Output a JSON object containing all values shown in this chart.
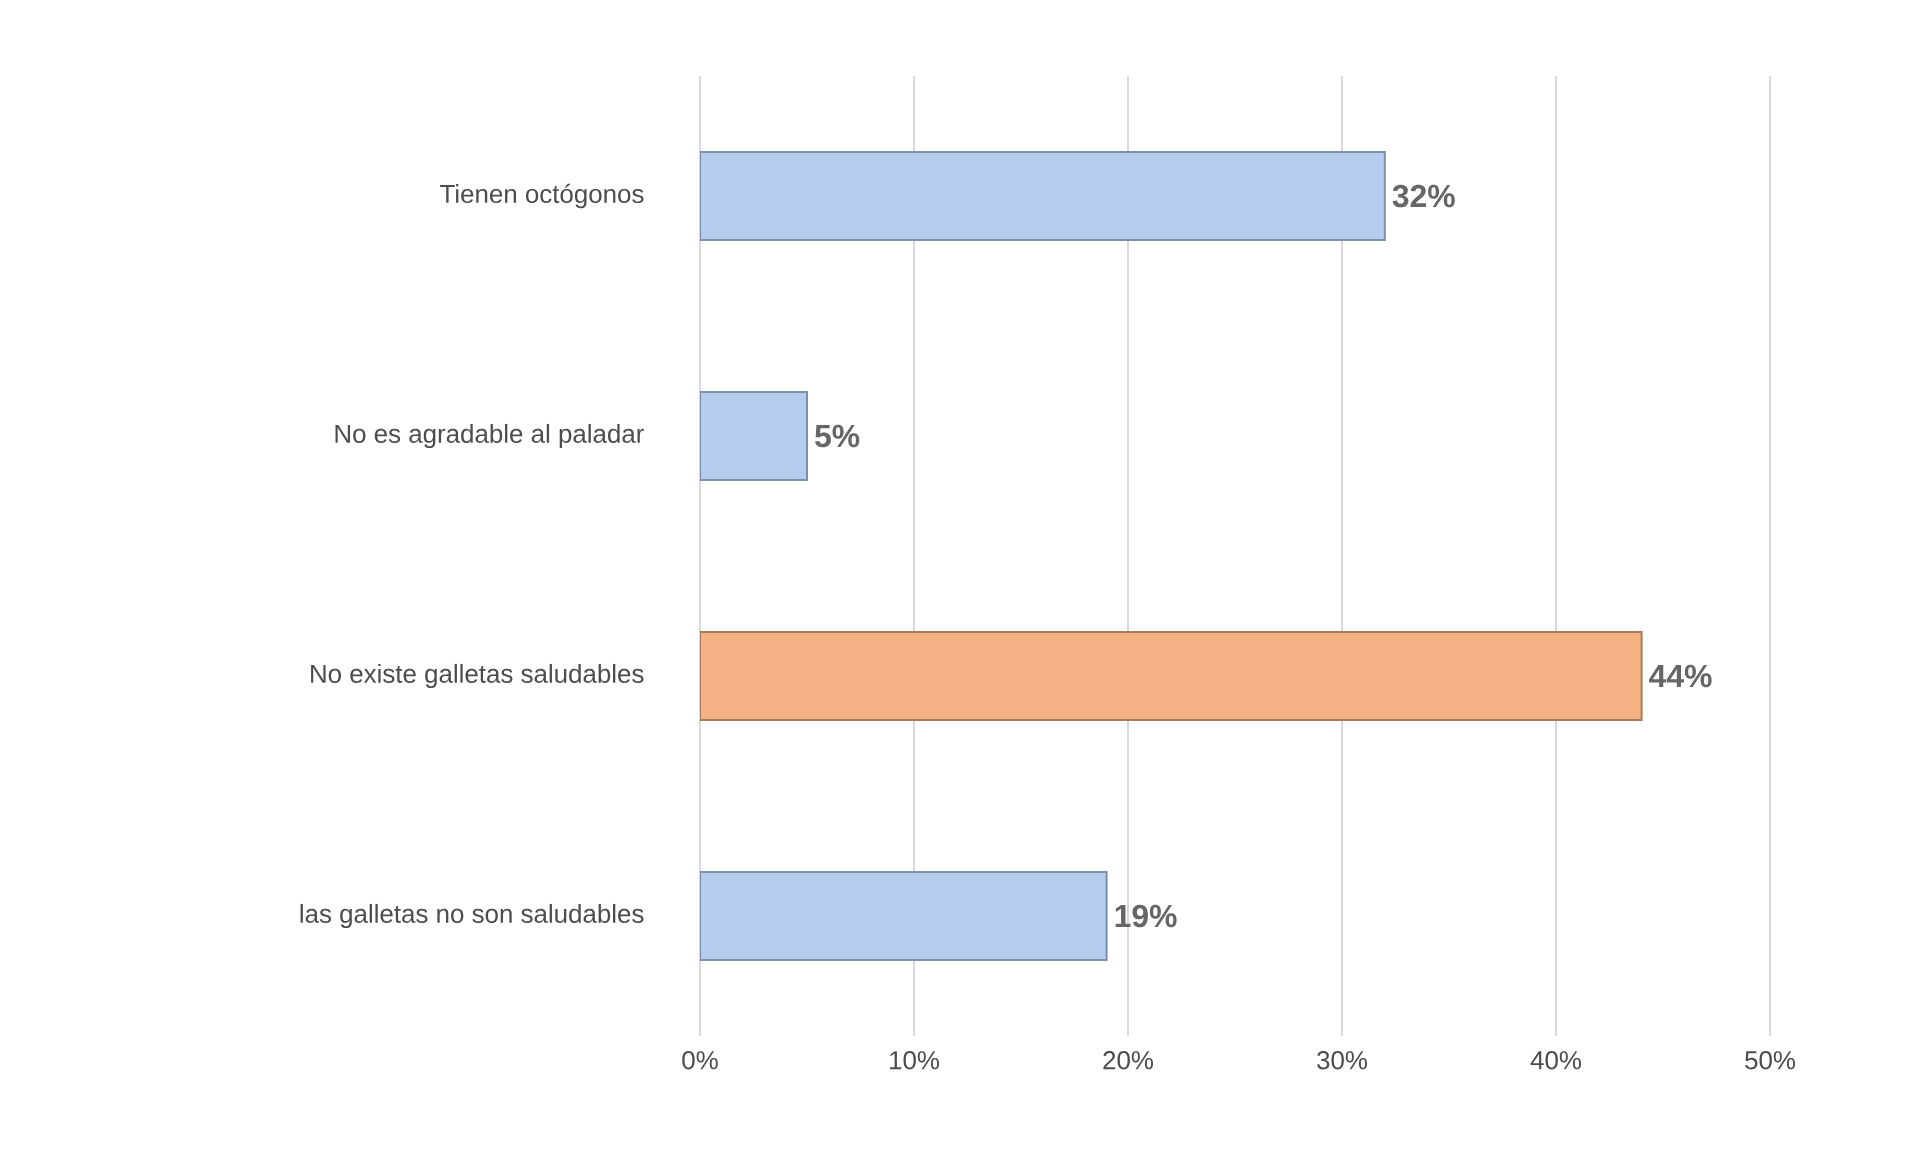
{
  "chart_data": {
    "type": "bar",
    "orientation": "horizontal",
    "categories": [
      "Tienen octógonos",
      "No es agradable al paladar",
      "No existe galletas saludables",
      "las galletas no son saludables"
    ],
    "values": [
      32,
      5,
      44,
      19
    ],
    "colors": [
      "#b4cdee",
      "#b4cdee",
      "#f4b183",
      "#b4cdee"
    ],
    "value_labels": [
      "32%",
      "5%",
      "44%",
      "19%"
    ],
    "xlim": [
      0,
      50
    ],
    "xticks": [
      {
        "value": 0,
        "label": "0%"
      },
      {
        "value": 10,
        "label": "10%"
      },
      {
        "value": 20,
        "label": "20%"
      },
      {
        "value": 30,
        "label": "30%"
      },
      {
        "value": 40,
        "label": "40%"
      },
      {
        "value": 50,
        "label": "50%"
      }
    ],
    "grid": "x"
  }
}
